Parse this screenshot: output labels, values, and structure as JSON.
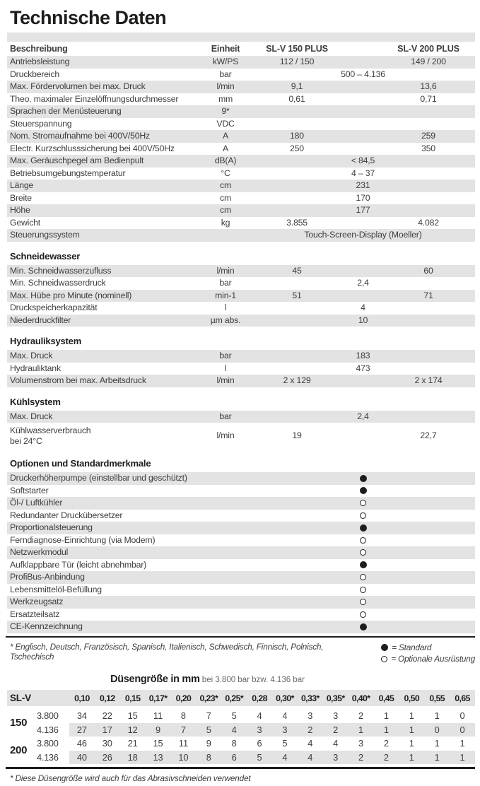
{
  "title": "Technische Daten",
  "colors": {
    "stripe": "#e3e3e3",
    "text": "#3d3d3c",
    "heading": "#1d1d1b"
  },
  "main_table": {
    "columns": [
      "Beschreibung",
      "Einheit",
      "SL-V 150 PLUS",
      "SL-V 200 PLUS"
    ],
    "sections": [
      {
        "rows": [
          {
            "label": "Antriebsleistung",
            "unit": "kW/PS",
            "v150": "112 / 150",
            "v200": "149 / 200"
          },
          {
            "label": "Druckbereich",
            "unit": "bar",
            "span": "500 – 4.136"
          },
          {
            "label": "Max. Fördervolumen bei max. Druck",
            "unit": "l/min",
            "v150": "9,1",
            "v200": "13,6"
          },
          {
            "label": "Theo. maximaler Einzelöffnungsdurchmesser",
            "unit": "mm",
            "v150": "0,61",
            "v200": "0,71"
          },
          {
            "label": "Sprachen der Menüsteuerung",
            "unit": "9*"
          },
          {
            "label": "Steuerspannung",
            "unit": "VDC"
          },
          {
            "label": "Nom. Stromaufnahme bei 400V/50Hz",
            "unit": "A",
            "v150": "180",
            "v200": "259"
          },
          {
            "label": "Electr. Kurzschlusssicherung bei 400V/50Hz",
            "unit": "A",
            "v150": "250",
            "v200": "350"
          },
          {
            "label": "Max. Geräuschpegel am Bedienpult",
            "unit": "dB(A)",
            "span": "< 84,5"
          },
          {
            "label": "Betriebsumgebungstemperatur",
            "unit": "°C",
            "span": "4 – 37"
          },
          {
            "label": "Länge",
            "unit": "cm",
            "span": "231"
          },
          {
            "label": "Breite",
            "unit": "cm",
            "span": "170"
          },
          {
            "label": "Höhe",
            "unit": "cm",
            "span": "177"
          },
          {
            "label": "Gewicht",
            "unit": "kg",
            "v150": "3.855",
            "v200": "4.082"
          },
          {
            "label": "Steuerungssystem",
            "unit": "",
            "span": "Touch-Screen-Display (Moeller)"
          }
        ]
      },
      {
        "title": "Schneidewasser",
        "rows": [
          {
            "label": "Min. Schneidwasserzufluss",
            "unit": "l/min",
            "v150": "45",
            "v200": "60"
          },
          {
            "label": "Min. Schneidwasserdruck",
            "unit": "bar",
            "span": "2,4"
          },
          {
            "label": "Max. Hübe pro Minute (nominell)",
            "unit": "min-1",
            "v150": "51",
            "v200": "71"
          },
          {
            "label": "Druckspeicherkapazität",
            "unit": "l",
            "span": "4"
          },
          {
            "label": "Niederdruckfilter",
            "unit": "µm abs.",
            "span": "10"
          }
        ]
      },
      {
        "title": "Hydrauliksystem",
        "rows": [
          {
            "label": "Max. Druck",
            "unit": "bar",
            "span": "183"
          },
          {
            "label": "Hydrauliktank",
            "unit": "l",
            "span": "473"
          },
          {
            "label": "Volumenstrom bei max. Arbeitsdruck",
            "unit": "l/min",
            "v150": "2 x 129",
            "v200": "2 x 174"
          }
        ]
      },
      {
        "title": "Kühlsystem",
        "rows": [
          {
            "label": "Max. Druck",
            "unit": "bar",
            "span": "2,4"
          },
          {
            "label": "Kühlwasserverbrauch\nbei 24°C",
            "unit": "l/min",
            "v150": "19",
            "v200": "22,7"
          }
        ]
      },
      {
        "title": "Optionen und Standardmerkmale",
        "type": "options",
        "rows": [
          {
            "label": "Druckerhöherpumpe (einstellbar und geschützt)",
            "status": "standard"
          },
          {
            "label": "Softstarter",
            "status": "standard"
          },
          {
            "label": "Öl-/ Luftkühler",
            "status": "optional"
          },
          {
            "label": "Redundanter Druckübersetzer",
            "status": "optional"
          },
          {
            "label": "Proportionalsteuerung",
            "status": "standard"
          },
          {
            "label": "Ferndiagnose-Einrichtung (via Modem)",
            "status": "optional"
          },
          {
            "label": "Netzwerkmodul",
            "status": "optional"
          },
          {
            "label": "Aufklappbare Tür (leicht abnehmbar)",
            "status": "standard"
          },
          {
            "label": "ProfiBus-Anbindung",
            "status": "optional"
          },
          {
            "label": "Lebensmittelöl-Befüllung",
            "status": "optional"
          },
          {
            "label": "Werkzeugsatz",
            "status": "optional"
          },
          {
            "label": "Ersatzteilsatz",
            "status": "optional"
          },
          {
            "label": "CE-Kennzeichnung",
            "status": "standard"
          }
        ]
      }
    ]
  },
  "footnotes": {
    "languages": "* Englisch, Deutsch, Französisch, Spanisch, Italienisch, Schwedisch, Finnisch, Polnisch, Tschechisch",
    "legend_standard": "= Standard",
    "legend_optional": "= Optionale Ausrüstung"
  },
  "nozzle_table": {
    "title": "Düsengröße in mm",
    "subtitle": "bei 3.800 bar bzw. 4.136 bar",
    "corner_label": "SL-V",
    "sizes": [
      "0,10",
      "0,12",
      "0,15",
      "0,17*",
      "0,20",
      "0,23*",
      "0,25*",
      "0,28",
      "0,30*",
      "0,33*",
      "0,35*",
      "0,40*",
      "0,45",
      "0,50",
      "0,55",
      "0,65"
    ],
    "groups": [
      {
        "model": "150",
        "rows": [
          {
            "pressure": "3.800",
            "values": [
              34,
              22,
              15,
              11,
              8,
              7,
              5,
              4,
              4,
              3,
              3,
              2,
              1,
              1,
              1,
              0
            ]
          },
          {
            "pressure": "4.136",
            "values": [
              27,
              17,
              12,
              9,
              7,
              5,
              4,
              3,
              3,
              2,
              2,
              1,
              1,
              1,
              0,
              0
            ]
          }
        ]
      },
      {
        "model": "200",
        "rows": [
          {
            "pressure": "3.800",
            "values": [
              46,
              30,
              21,
              15,
              11,
              9,
              8,
              6,
              5,
              4,
              4,
              3,
              2,
              1,
              1,
              1
            ]
          },
          {
            "pressure": "4.136",
            "values": [
              40,
              26,
              18,
              13,
              10,
              8,
              6,
              5,
              4,
              4,
              3,
              2,
              2,
              1,
              1,
              1
            ]
          }
        ]
      }
    ],
    "footnote": "* Diese Düsengröße wird auch für das Abrasivschneiden verwendet"
  }
}
